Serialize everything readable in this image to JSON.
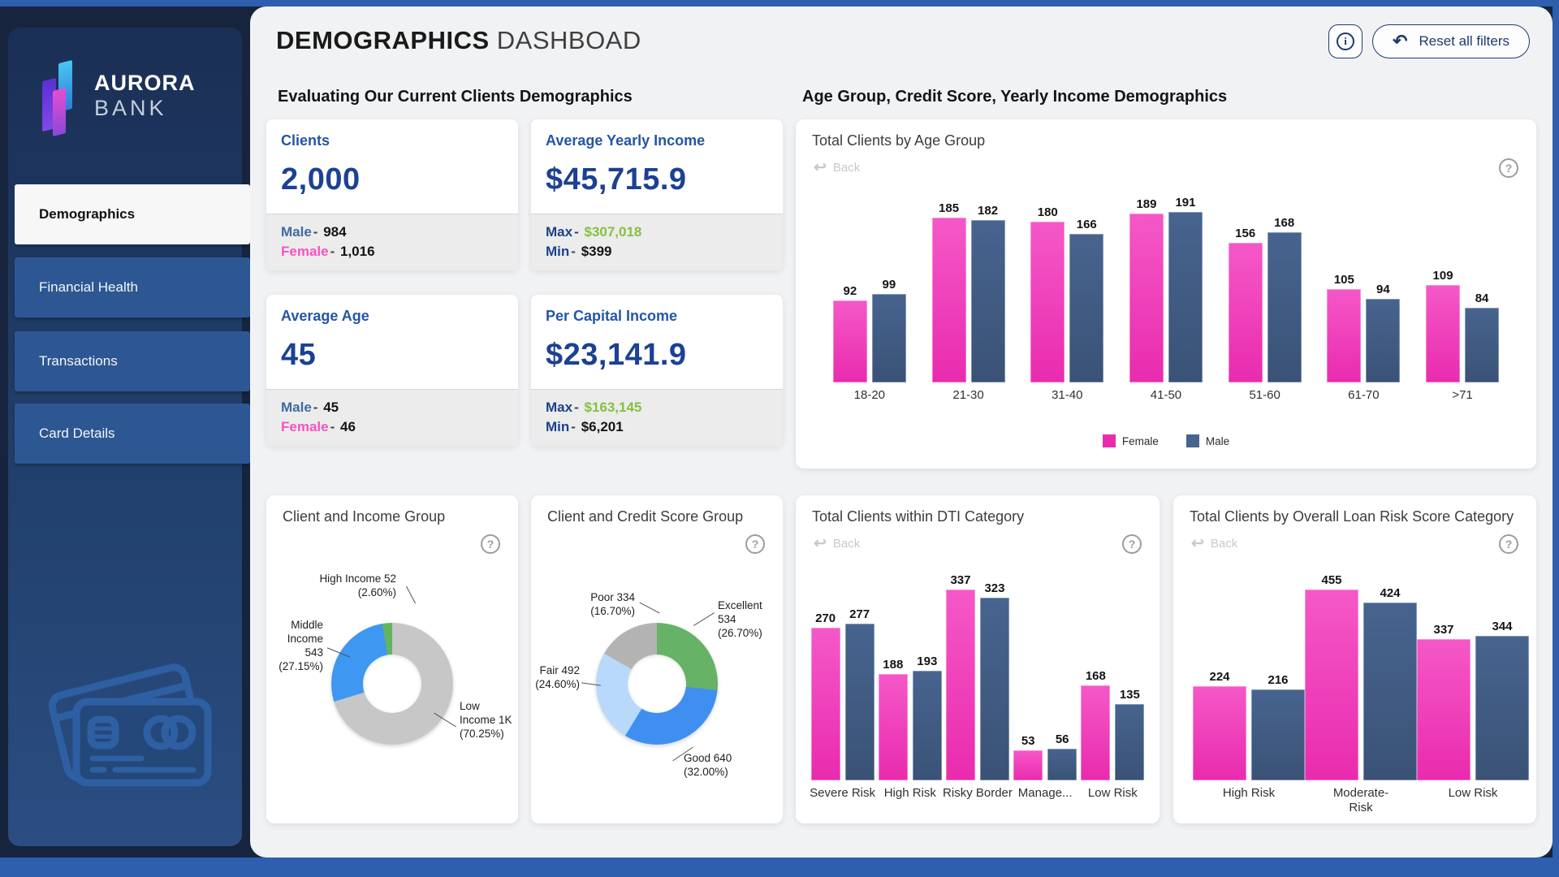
{
  "icons": {
    "back": "↩",
    "help": "?",
    "info": "i",
    "reset": "↶"
  },
  "theme": {
    "frame_blue": "#2e5fae",
    "sidebar_navy": "#16243d",
    "nav_button_blue": "#2d5792",
    "female_pink": "#ee3cb8",
    "male_blue": "#40608c",
    "kpi_navy": "#1c4193",
    "green_value": "#85c141",
    "pink_label": "#f653c1",
    "blue_label": "#3e6ba3"
  },
  "header": {
    "title_bold": "DEMOGRAPHICS",
    "title_light": "DASHBOAD",
    "reset_label": "Reset all filters"
  },
  "sidebar": {
    "brand_line1": "AURORA",
    "brand_line2": "BANK",
    "items": [
      {
        "label": "Demographics",
        "active": true
      },
      {
        "label": "Financial Health",
        "active": false
      },
      {
        "label": "Transactions",
        "active": false
      },
      {
        "label": "Card Details",
        "active": false
      }
    ]
  },
  "kpi": {
    "section_title": "Evaluating Our Current Clients Demographics",
    "separator": "-",
    "cards": [
      {
        "label": "Clients",
        "value": "2,000",
        "row1_key": "Male",
        "row1_value": "984",
        "row2_key": "Female",
        "row2_value": "1,016"
      },
      {
        "label": "Average Yearly Income",
        "value": "$45,715.9",
        "row1_key": "Max",
        "row1_value": "$307,018",
        "row2_key": "Min",
        "row2_value": "$399"
      },
      {
        "label": "Average Age",
        "value": "45",
        "row1_key": "Male",
        "row1_value": "45",
        "row2_key": "Female",
        "row2_value": "46"
      },
      {
        "label": "Per Capital Income",
        "value": "$23,141.9",
        "row1_key": "Max",
        "row1_value": "$163,145",
        "row2_key": "Min",
        "row2_value": "$6,201"
      }
    ]
  },
  "right_section_title": "Age Group, Credit Score, Yearly Income Demographics",
  "charts": {
    "age_chart": {
      "type": "bar",
      "title": "Total Clients by Age Group",
      "back_label": "Back",
      "categories": [
        "18-20",
        "21-30",
        "31-40",
        "41-50",
        "51-60",
        "61-70",
        ">71"
      ],
      "series": [
        {
          "name": "Female",
          "color_top": "#f558c8",
          "color_bottom": "#e92bae",
          "values": [
            92,
            185,
            180,
            189,
            156,
            105,
            109
          ]
        },
        {
          "name": "Male",
          "color_top": "#47648f",
          "color_bottom": "#3a5276",
          "values": [
            99,
            182,
            166,
            191,
            168,
            94,
            84
          ]
        }
      ],
      "legend_position": "bottom"
    },
    "income_donut": {
      "type": "pie",
      "title": "Client and Income Group",
      "rotate_deg": -9.4,
      "slices": [
        {
          "label": "High Income 52 (2.60%)",
          "name": "High Income",
          "value": 52,
          "pct": 2.6,
          "color": "#62b55f"
        },
        {
          "label": "Low Income 1K (70.25%)",
          "name": "Low Income",
          "value": 1405,
          "pct": 70.25,
          "color": "#c7c7c7"
        },
        {
          "label": "Middle Income 543 (27.15%)",
          "name": "Middle Income",
          "value": 543,
          "pct": 27.15,
          "color": "#3e97f1"
        }
      ]
    },
    "credit_donut": {
      "type": "pie",
      "title": "Client and Credit Score Group",
      "rotate_deg": 0,
      "slices": [
        {
          "label": "Excellent 534 (26.70%)",
          "name": "Excellent",
          "value": 534,
          "pct": 26.7,
          "color": "#66b266"
        },
        {
          "label": "Good 640 (32.00%)",
          "name": "Good",
          "value": 640,
          "pct": 32.0,
          "color": "#3e8ff0"
        },
        {
          "label": "Fair 492 (24.60%)",
          "name": "Fair",
          "value": 492,
          "pct": 24.6,
          "color": "#b8d9f9"
        },
        {
          "label": "Poor 334 (16.70%)",
          "name": "Poor",
          "value": 334,
          "pct": 16.7,
          "color": "#b3b3b3"
        }
      ]
    },
    "dti_chart": {
      "type": "bar",
      "title": "Total Clients within DTI Category",
      "back_label": "Back",
      "categories": [
        "Severe Risk",
        "High Risk",
        "Risky Border",
        "Manage...",
        "Low Risk"
      ],
      "series": [
        {
          "name": "Female",
          "color_top": "#f558c8",
          "color_bottom": "#e92bae",
          "values": [
            270,
            188,
            337,
            53,
            168
          ]
        },
        {
          "name": "Male",
          "color_top": "#47648f",
          "color_bottom": "#3a5276",
          "values": [
            277,
            193,
            323,
            56,
            135
          ]
        }
      ]
    },
    "risk_chart": {
      "type": "bar",
      "title": "Total Clients by Overall Loan Risk Score Category",
      "back_label": "Back",
      "categories": [
        "High Risk",
        "Moderate-Risk",
        "Low Risk"
      ],
      "series": [
        {
          "name": "Female",
          "color_top": "#f558c8",
          "color_bottom": "#e92bae",
          "values": [
            224,
            455,
            337
          ]
        },
        {
          "name": "Male",
          "color_top": "#47648f",
          "color_bottom": "#3a5276",
          "values": [
            216,
            424,
            344
          ]
        }
      ]
    }
  }
}
